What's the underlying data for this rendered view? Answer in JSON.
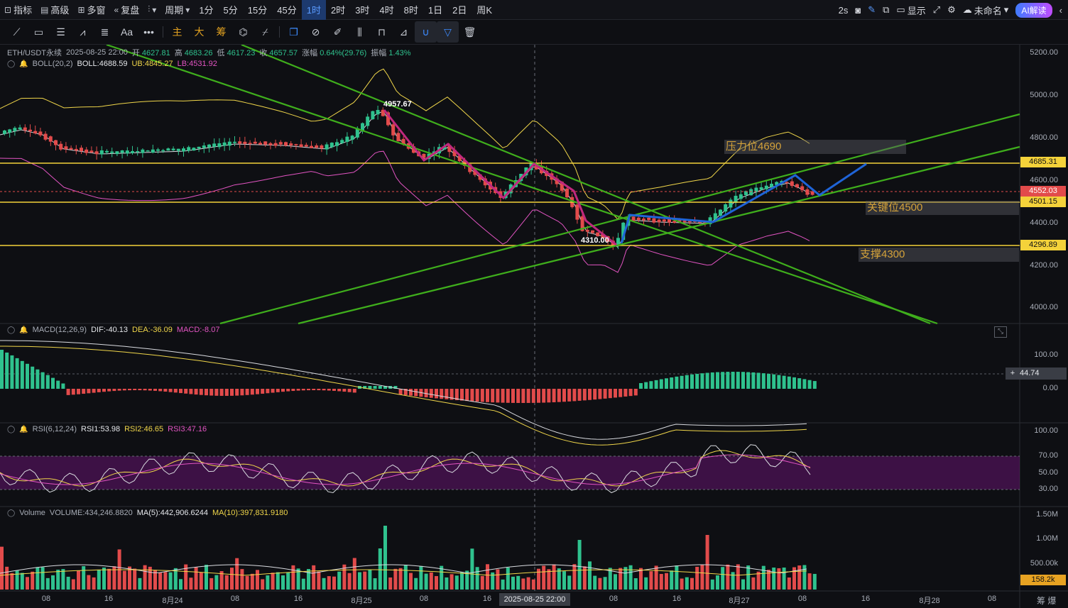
{
  "toolbar": {
    "indicators_label": "指标",
    "advanced_label": "高级",
    "multi_window_label": "多窗",
    "replay_label": "复盘",
    "period_label": "周期",
    "periods": [
      "1分",
      "5分",
      "15分",
      "45分",
      "1时",
      "2时",
      "3时",
      "4时",
      "8时",
      "1日",
      "2日",
      "周K"
    ],
    "active_period": "1时",
    "refresh_label": "2s",
    "display_label": "显示",
    "unnamed_label": "未命名",
    "ai_label": "AI解读"
  },
  "drawing_tools": {
    "main_label": "主",
    "big_label": "大",
    "chips_label": "筹",
    "text_tool_label": "Aa"
  },
  "main_pane": {
    "symbol": "ETH/USDT永续",
    "datetime": "2025-08-25 22:00",
    "open_label": "开",
    "open": "4627.81",
    "high_label": "高",
    "high": "4683.26",
    "low_label": "低",
    "low": "4617.23",
    "close_label": "收",
    "close": "4657.57",
    "change_label": "涨幅",
    "change": "0.64%(29.76)",
    "amp_label": "振幅",
    "amp": "1.43%",
    "boll_name": "BOLL(20,2)",
    "boll_mid": "BOLL:4688.59",
    "boll_ub": "UB:4845.27",
    "boll_lb": "LB:4531.92",
    "price_axis": [
      "5200.00",
      "5000.00",
      "4800.00",
      "4600.00",
      "4400.00",
      "4200.00",
      "4000.00"
    ],
    "level_tags": {
      "level_4685": "4685.31",
      "current": "4552.03",
      "level_4501": "4501.15",
      "level_4296": "4296.89"
    },
    "zone_labels": {
      "resistance": "压力位4690",
      "key": "关键位4500",
      "support": "支撑4300"
    },
    "point_labels": {
      "high": "4957.67",
      "low": "4310.00"
    }
  },
  "macd_pane": {
    "name": "MACD(12,26,9)",
    "dif": "DIF:-40.13",
    "dea": "DEA:-36.09",
    "macd": "MACD:-8.07",
    "axis": [
      "100.00",
      "0.00"
    ],
    "cursor_value": "44.74"
  },
  "rsi_pane": {
    "name": "RSI(6,12,24)",
    "rsi1": "RSI1:53.98",
    "rsi2": "RSI2:46.65",
    "rsi3": "RSI3:47.16",
    "axis": [
      "100.00",
      "70.00",
      "50.00",
      "30.00"
    ]
  },
  "volume_pane": {
    "name": "Volume",
    "volume": "VOLUME:434,246.8820",
    "ma5": "MA(5):442,906.6244",
    "ma10": "MA(10):397,831.9180",
    "axis": [
      "1.50M",
      "1.00M",
      "500.00k"
    ],
    "current_tag": "158.2k"
  },
  "time_axis": {
    "labels": [
      "08",
      "16",
      "8月24",
      "08",
      "16",
      "8月25",
      "08",
      "16",
      "08",
      "16",
      "8月27",
      "08",
      "16",
      "8月28",
      "08"
    ],
    "cursor_label": "2025-08-25 22:00",
    "corner_label": "筹 爆"
  },
  "colors": {
    "up": "#2fc28e",
    "down": "#e24b4b",
    "boll_up": "#f0d64a",
    "boll_low": "#e254c2",
    "trend_green": "#3fae1c",
    "level_yellow": "#f4d23a",
    "wave_magenta": "#c0287e",
    "wave_blue": "#1f64d8"
  }
}
